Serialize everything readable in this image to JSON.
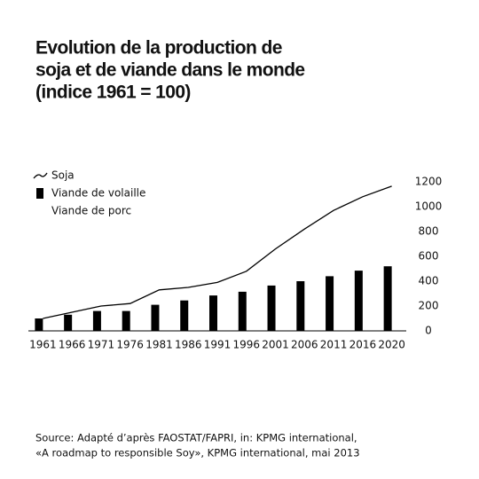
{
  "chart_data": {
    "type": "bar_line",
    "title": [
      "Evolution de la production de",
      "soja et de viande dans le monde",
      "(indice 1961 = 100)"
    ],
    "categories": [
      "1961",
      "1966",
      "1971",
      "1976",
      "1981",
      "1986",
      "1991",
      "1996",
      "2001",
      "2006",
      "2011",
      "2016",
      "2020"
    ],
    "series": [
      {
        "name": "Soja",
        "type": "line",
        "color": "#000000",
        "values": [
          100,
          150,
          200,
          220,
          330,
          350,
          390,
          480,
          660,
          820,
          970,
          1080,
          1165
        ]
      },
      {
        "name": "Viande de volaille",
        "type": "bar",
        "color": "#000000",
        "values": [
          100,
          130,
          160,
          160,
          210,
          245,
          285,
          315,
          365,
          400,
          440,
          485,
          520
        ]
      },
      {
        "name": "Viande de porc",
        "type": "bar",
        "color": "#ffffff",
        "values": [
          null,
          null,
          null,
          null,
          null,
          null,
          null,
          null,
          null,
          null,
          null,
          null,
          null
        ]
      }
    ],
    "ylim": [
      0,
      1200
    ],
    "yticks": [
      0,
      200,
      400,
      600,
      800,
      1000,
      1200
    ],
    "source": [
      "Source: Adapté d’après FAOSTAT/FAPRI, in: KPMG international,",
      "«A roadmap to responsible Soy», KPMG international, mai 2013"
    ]
  }
}
